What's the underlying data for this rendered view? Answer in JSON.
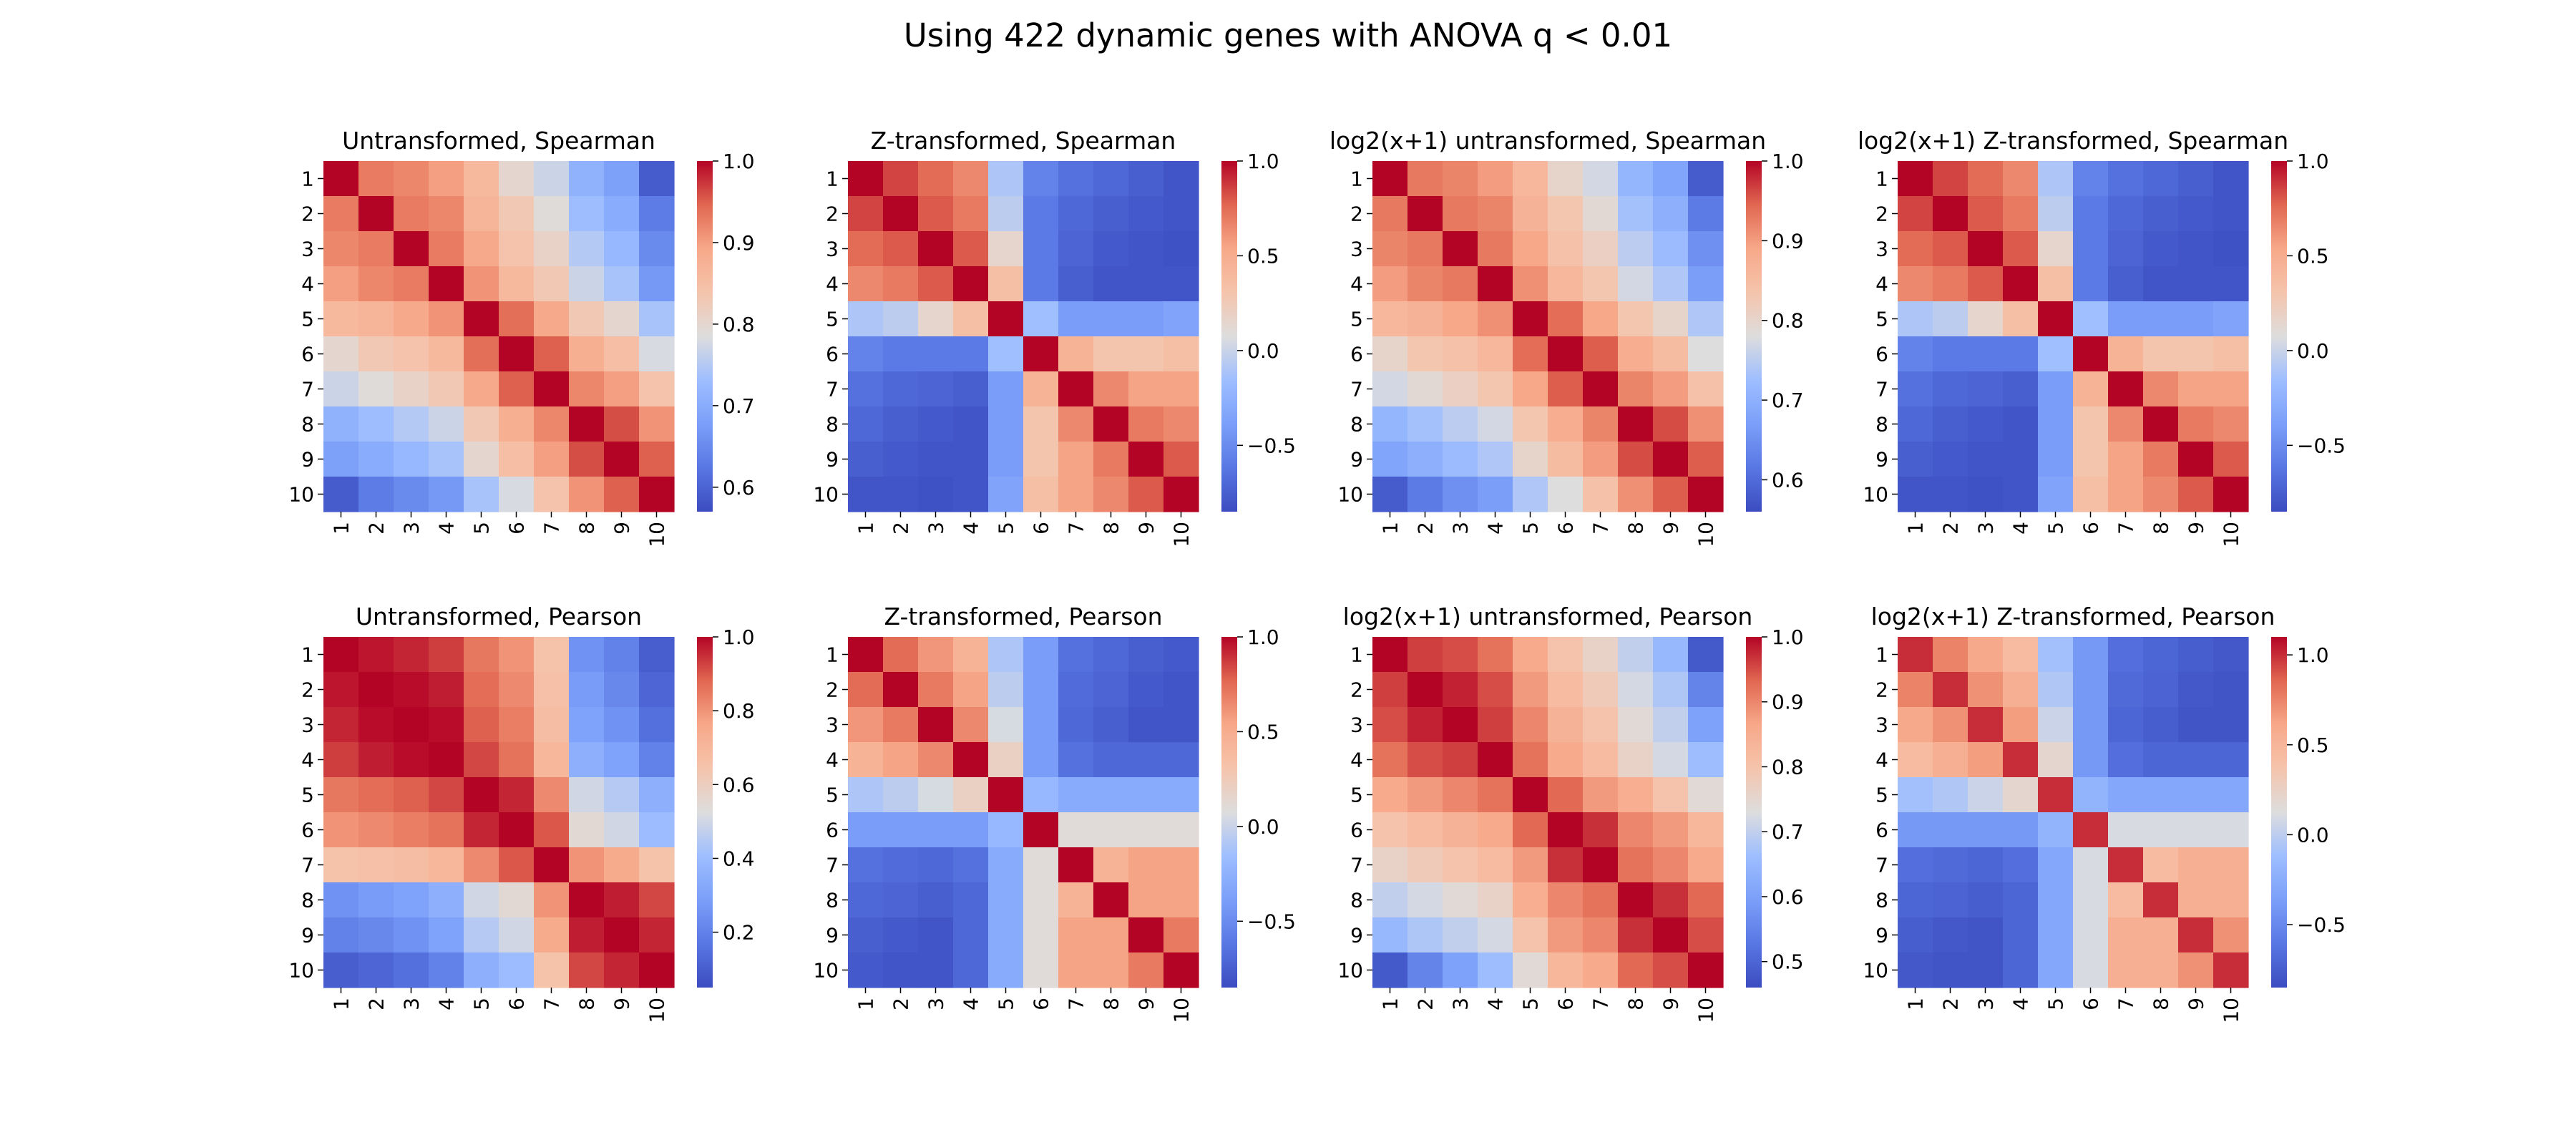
{
  "figure": {
    "title": "Using 422 dynamic genes with ANOVA q < 0.01",
    "tick_labels": [
      "1",
      "2",
      "3",
      "4",
      "5",
      "6",
      "7",
      "8",
      "9",
      "10"
    ],
    "colormap": "coolwarm"
  },
  "chart_data": [
    {
      "type": "heatmap",
      "title": "Untransformed, Spearman",
      "vmin": 0.57,
      "vmax": 1.0,
      "colorbar_ticks": [
        0.6,
        0.7,
        0.8,
        0.9,
        1.0
      ],
      "colorbar_tick_labels": [
        "0.6",
        "0.7",
        "0.8",
        "0.9",
        "1.0"
      ],
      "matrix": [
        [
          1.0,
          0.93,
          0.92,
          0.9,
          0.86,
          0.8,
          0.77,
          0.71,
          0.68,
          0.59
        ],
        [
          0.93,
          1.0,
          0.93,
          0.92,
          0.87,
          0.83,
          0.79,
          0.73,
          0.7,
          0.63
        ],
        [
          0.92,
          0.93,
          1.0,
          0.93,
          0.89,
          0.84,
          0.81,
          0.75,
          0.72,
          0.65
        ],
        [
          0.9,
          0.92,
          0.93,
          1.0,
          0.91,
          0.86,
          0.83,
          0.77,
          0.74,
          0.67
        ],
        [
          0.86,
          0.87,
          0.89,
          0.91,
          1.0,
          0.94,
          0.89,
          0.83,
          0.8,
          0.74
        ],
        [
          0.8,
          0.83,
          0.84,
          0.86,
          0.94,
          1.0,
          0.95,
          0.88,
          0.85,
          0.78
        ],
        [
          0.77,
          0.79,
          0.81,
          0.83,
          0.89,
          0.95,
          1.0,
          0.92,
          0.9,
          0.84
        ],
        [
          0.71,
          0.73,
          0.75,
          0.77,
          0.83,
          0.88,
          0.92,
          1.0,
          0.96,
          0.91
        ],
        [
          0.68,
          0.7,
          0.72,
          0.74,
          0.8,
          0.85,
          0.9,
          0.96,
          1.0,
          0.95
        ],
        [
          0.59,
          0.63,
          0.65,
          0.67,
          0.74,
          0.78,
          0.84,
          0.91,
          0.95,
          1.0
        ]
      ]
    },
    {
      "type": "heatmap",
      "title": "Z-transformed, Spearman",
      "vmin": -0.85,
      "vmax": 1.0,
      "colorbar_ticks": [
        -0.5,
        0.0,
        0.5,
        1.0
      ],
      "colorbar_tick_labels": [
        "−0.5",
        "0.0",
        "0.5",
        "1.0"
      ],
      "matrix": [
        [
          1.0,
          0.85,
          0.75,
          0.65,
          -0.1,
          -0.55,
          -0.65,
          -0.7,
          -0.75,
          -0.8
        ],
        [
          0.85,
          1.0,
          0.8,
          0.7,
          -0.05,
          -0.6,
          -0.7,
          -0.75,
          -0.78,
          -0.8
        ],
        [
          0.75,
          0.8,
          1.0,
          0.8,
          0.15,
          -0.6,
          -0.72,
          -0.78,
          -0.8,
          -0.82
        ],
        [
          0.65,
          0.7,
          0.8,
          1.0,
          0.35,
          -0.6,
          -0.75,
          -0.8,
          -0.8,
          -0.8
        ],
        [
          -0.1,
          -0.05,
          0.15,
          0.35,
          1.0,
          -0.15,
          -0.4,
          -0.4,
          -0.4,
          -0.35
        ],
        [
          -0.55,
          -0.6,
          -0.6,
          -0.6,
          -0.15,
          1.0,
          0.45,
          0.3,
          0.3,
          0.35
        ],
        [
          -0.65,
          -0.7,
          -0.72,
          -0.75,
          -0.4,
          0.45,
          1.0,
          0.65,
          0.55,
          0.55
        ],
        [
          -0.7,
          -0.75,
          -0.78,
          -0.8,
          -0.4,
          0.3,
          0.65,
          1.0,
          0.7,
          0.65
        ],
        [
          -0.75,
          -0.78,
          -0.8,
          -0.8,
          -0.4,
          0.3,
          0.55,
          0.7,
          1.0,
          0.8
        ],
        [
          -0.8,
          -0.8,
          -0.82,
          -0.8,
          -0.35,
          0.35,
          0.55,
          0.65,
          0.8,
          1.0
        ]
      ]
    },
    {
      "type": "heatmap",
      "title": "log2(x+1) untransformed, Spearman",
      "vmin": 0.56,
      "vmax": 1.0,
      "colorbar_ticks": [
        0.6,
        0.7,
        0.8,
        0.9,
        1.0
      ],
      "colorbar_tick_labels": [
        "0.6",
        "0.7",
        "0.8",
        "0.9",
        "1.0"
      ],
      "matrix": [
        [
          1.0,
          0.93,
          0.92,
          0.9,
          0.86,
          0.8,
          0.77,
          0.71,
          0.68,
          0.58
        ],
        [
          0.93,
          1.0,
          0.93,
          0.92,
          0.87,
          0.83,
          0.79,
          0.73,
          0.7,
          0.62
        ],
        [
          0.92,
          0.93,
          1.0,
          0.93,
          0.89,
          0.84,
          0.81,
          0.75,
          0.72,
          0.65
        ],
        [
          0.9,
          0.92,
          0.93,
          1.0,
          0.91,
          0.86,
          0.83,
          0.77,
          0.74,
          0.67
        ],
        [
          0.86,
          0.87,
          0.89,
          0.91,
          1.0,
          0.94,
          0.89,
          0.83,
          0.8,
          0.74
        ],
        [
          0.8,
          0.83,
          0.84,
          0.86,
          0.94,
          1.0,
          0.95,
          0.88,
          0.85,
          0.78
        ],
        [
          0.77,
          0.79,
          0.81,
          0.83,
          0.89,
          0.95,
          1.0,
          0.92,
          0.9,
          0.84
        ],
        [
          0.71,
          0.73,
          0.75,
          0.77,
          0.83,
          0.88,
          0.92,
          1.0,
          0.96,
          0.91
        ],
        [
          0.68,
          0.7,
          0.72,
          0.74,
          0.8,
          0.85,
          0.9,
          0.96,
          1.0,
          0.95
        ],
        [
          0.58,
          0.62,
          0.65,
          0.67,
          0.74,
          0.78,
          0.84,
          0.91,
          0.95,
          1.0
        ]
      ]
    },
    {
      "type": "heatmap",
      "title": "log2(x+1) Z-transformed, Spearman",
      "vmin": -0.85,
      "vmax": 1.0,
      "colorbar_ticks": [
        -0.5,
        0.0,
        0.5,
        1.0
      ],
      "colorbar_tick_labels": [
        "−0.5",
        "0.0",
        "0.5",
        "1.0"
      ],
      "matrix": [
        [
          1.0,
          0.85,
          0.75,
          0.65,
          -0.1,
          -0.55,
          -0.65,
          -0.7,
          -0.75,
          -0.8
        ],
        [
          0.85,
          1.0,
          0.8,
          0.7,
          -0.05,
          -0.6,
          -0.7,
          -0.75,
          -0.78,
          -0.8
        ],
        [
          0.75,
          0.8,
          1.0,
          0.8,
          0.15,
          -0.6,
          -0.72,
          -0.78,
          -0.8,
          -0.82
        ],
        [
          0.65,
          0.7,
          0.8,
          1.0,
          0.35,
          -0.6,
          -0.75,
          -0.8,
          -0.8,
          -0.8
        ],
        [
          -0.1,
          -0.05,
          0.15,
          0.35,
          1.0,
          -0.15,
          -0.4,
          -0.4,
          -0.4,
          -0.35
        ],
        [
          -0.55,
          -0.6,
          -0.6,
          -0.6,
          -0.15,
          1.0,
          0.45,
          0.3,
          0.3,
          0.35
        ],
        [
          -0.65,
          -0.7,
          -0.72,
          -0.75,
          -0.4,
          0.45,
          1.0,
          0.65,
          0.55,
          0.55
        ],
        [
          -0.7,
          -0.75,
          -0.78,
          -0.8,
          -0.4,
          0.3,
          0.65,
          1.0,
          0.7,
          0.65
        ],
        [
          -0.75,
          -0.78,
          -0.8,
          -0.8,
          -0.4,
          0.3,
          0.55,
          0.7,
          1.0,
          0.8
        ],
        [
          -0.8,
          -0.8,
          -0.82,
          -0.8,
          -0.35,
          0.35,
          0.55,
          0.65,
          0.8,
          1.0
        ]
      ]
    },
    {
      "type": "heatmap",
      "title": "Untransformed, Pearson",
      "vmin": 0.05,
      "vmax": 1.0,
      "colorbar_ticks": [
        0.2,
        0.4,
        0.6,
        0.8,
        1.0
      ],
      "colorbar_tick_labels": [
        "0.2",
        "0.4",
        "0.6",
        "0.8",
        "1.0"
      ],
      "matrix": [
        [
          1.0,
          0.98,
          0.96,
          0.93,
          0.85,
          0.8,
          0.65,
          0.25,
          0.2,
          0.1
        ],
        [
          0.98,
          1.0,
          0.99,
          0.97,
          0.87,
          0.82,
          0.66,
          0.28,
          0.22,
          0.12
        ],
        [
          0.96,
          0.99,
          1.0,
          0.99,
          0.89,
          0.84,
          0.67,
          0.3,
          0.25,
          0.15
        ],
        [
          0.93,
          0.97,
          0.99,
          1.0,
          0.92,
          0.86,
          0.7,
          0.35,
          0.3,
          0.2
        ],
        [
          0.85,
          0.87,
          0.89,
          0.92,
          1.0,
          0.96,
          0.82,
          0.5,
          0.45,
          0.35
        ],
        [
          0.8,
          0.82,
          0.84,
          0.86,
          0.96,
          1.0,
          0.9,
          0.55,
          0.5,
          0.4
        ],
        [
          0.65,
          0.66,
          0.67,
          0.7,
          0.82,
          0.9,
          1.0,
          0.8,
          0.75,
          0.65
        ],
        [
          0.25,
          0.28,
          0.3,
          0.35,
          0.5,
          0.55,
          0.8,
          1.0,
          0.97,
          0.92
        ],
        [
          0.2,
          0.22,
          0.25,
          0.3,
          0.45,
          0.5,
          0.75,
          0.97,
          1.0,
          0.96
        ],
        [
          0.1,
          0.12,
          0.15,
          0.2,
          0.35,
          0.4,
          0.65,
          0.92,
          0.96,
          1.0
        ]
      ]
    },
    {
      "type": "heatmap",
      "title": "Z-transformed, Pearson",
      "vmin": -0.85,
      "vmax": 1.0,
      "colorbar_ticks": [
        -0.5,
        0.0,
        0.5,
        1.0
      ],
      "colorbar_tick_labels": [
        "−0.5",
        "0.0",
        "0.5",
        "1.0"
      ],
      "matrix": [
        [
          1.0,
          0.75,
          0.6,
          0.45,
          -0.1,
          -0.4,
          -0.65,
          -0.7,
          -0.75,
          -0.78
        ],
        [
          0.75,
          1.0,
          0.7,
          0.55,
          -0.05,
          -0.4,
          -0.68,
          -0.72,
          -0.78,
          -0.8
        ],
        [
          0.6,
          0.7,
          1.0,
          0.65,
          0.05,
          -0.4,
          -0.7,
          -0.75,
          -0.8,
          -0.8
        ],
        [
          0.45,
          0.55,
          0.65,
          1.0,
          0.2,
          -0.4,
          -0.65,
          -0.7,
          -0.7,
          -0.7
        ],
        [
          -0.1,
          -0.05,
          0.05,
          0.2,
          1.0,
          -0.2,
          -0.3,
          -0.3,
          -0.3,
          -0.3
        ],
        [
          -0.4,
          -0.4,
          -0.4,
          -0.4,
          -0.2,
          1.0,
          0.1,
          0.1,
          0.1,
          0.1
        ],
        [
          -0.65,
          -0.68,
          -0.7,
          -0.65,
          -0.3,
          0.1,
          1.0,
          0.45,
          0.55,
          0.55
        ],
        [
          -0.7,
          -0.72,
          -0.75,
          -0.7,
          -0.3,
          0.1,
          0.45,
          1.0,
          0.55,
          0.55
        ],
        [
          -0.75,
          -0.78,
          -0.8,
          -0.7,
          -0.3,
          0.1,
          0.55,
          0.55,
          1.0,
          0.7
        ],
        [
          -0.78,
          -0.8,
          -0.8,
          -0.7,
          -0.3,
          0.1,
          0.55,
          0.55,
          0.7,
          1.0
        ]
      ]
    },
    {
      "type": "heatmap",
      "title": "log2(x+1) untransformed, Pearson",
      "vmin": 0.46,
      "vmax": 1.0,
      "colorbar_ticks": [
        0.5,
        0.6,
        0.7,
        0.8,
        0.9,
        1.0
      ],
      "colorbar_tick_labels": [
        "0.5",
        "0.6",
        "0.7",
        "0.8",
        "0.9",
        "1.0"
      ],
      "matrix": [
        [
          1.0,
          0.96,
          0.95,
          0.92,
          0.86,
          0.8,
          0.76,
          0.7,
          0.65,
          0.48
        ],
        [
          0.96,
          1.0,
          0.98,
          0.95,
          0.88,
          0.82,
          0.78,
          0.72,
          0.68,
          0.55
        ],
        [
          0.95,
          0.98,
          1.0,
          0.96,
          0.9,
          0.84,
          0.8,
          0.74,
          0.7,
          0.6
        ],
        [
          0.92,
          0.95,
          0.96,
          1.0,
          0.92,
          0.86,
          0.82,
          0.76,
          0.72,
          0.66
        ],
        [
          0.86,
          0.88,
          0.9,
          0.92,
          1.0,
          0.93,
          0.88,
          0.85,
          0.8,
          0.74
        ],
        [
          0.8,
          0.82,
          0.84,
          0.86,
          0.93,
          1.0,
          0.97,
          0.9,
          0.88,
          0.83
        ],
        [
          0.76,
          0.78,
          0.8,
          0.82,
          0.88,
          0.97,
          1.0,
          0.92,
          0.9,
          0.86
        ],
        [
          0.7,
          0.72,
          0.74,
          0.76,
          0.85,
          0.9,
          0.92,
          1.0,
          0.97,
          0.93
        ],
        [
          0.65,
          0.68,
          0.7,
          0.72,
          0.8,
          0.88,
          0.9,
          0.97,
          1.0,
          0.95
        ],
        [
          0.48,
          0.55,
          0.6,
          0.66,
          0.74,
          0.83,
          0.86,
          0.93,
          0.95,
          1.0
        ]
      ]
    },
    {
      "type": "heatmap",
      "title": "log2(x+1) Z-transformed, Pearson",
      "vmin": -0.85,
      "vmax": 1.1,
      "colorbar_ticks": [
        -0.5,
        0.0,
        0.5,
        1.0
      ],
      "colorbar_tick_labels": [
        "−0.5",
        "0.0",
        "0.5",
        "1.0"
      ],
      "matrix": [
        [
          1.0,
          0.75,
          0.6,
          0.45,
          -0.1,
          -0.4,
          -0.65,
          -0.7,
          -0.75,
          -0.78
        ],
        [
          0.75,
          1.0,
          0.7,
          0.55,
          -0.05,
          -0.4,
          -0.68,
          -0.72,
          -0.78,
          -0.8
        ],
        [
          0.6,
          0.7,
          1.0,
          0.65,
          0.05,
          -0.4,
          -0.7,
          -0.75,
          -0.8,
          -0.8
        ],
        [
          0.45,
          0.55,
          0.65,
          1.0,
          0.2,
          -0.4,
          -0.65,
          -0.7,
          -0.7,
          -0.7
        ],
        [
          -0.1,
          -0.05,
          0.05,
          0.2,
          1.0,
          -0.2,
          -0.3,
          -0.3,
          -0.3,
          -0.3
        ],
        [
          -0.4,
          -0.4,
          -0.4,
          -0.4,
          -0.2,
          1.0,
          0.1,
          0.1,
          0.1,
          0.1
        ],
        [
          -0.65,
          -0.68,
          -0.7,
          -0.65,
          -0.3,
          0.1,
          1.0,
          0.45,
          0.55,
          0.55
        ],
        [
          -0.7,
          -0.72,
          -0.75,
          -0.7,
          -0.3,
          0.1,
          0.45,
          1.0,
          0.55,
          0.55
        ],
        [
          -0.75,
          -0.78,
          -0.8,
          -0.7,
          -0.3,
          0.1,
          0.55,
          0.55,
          1.0,
          0.7
        ],
        [
          -0.78,
          -0.8,
          -0.8,
          -0.7,
          -0.3,
          0.1,
          0.55,
          0.55,
          0.7,
          1.0
        ]
      ]
    }
  ]
}
